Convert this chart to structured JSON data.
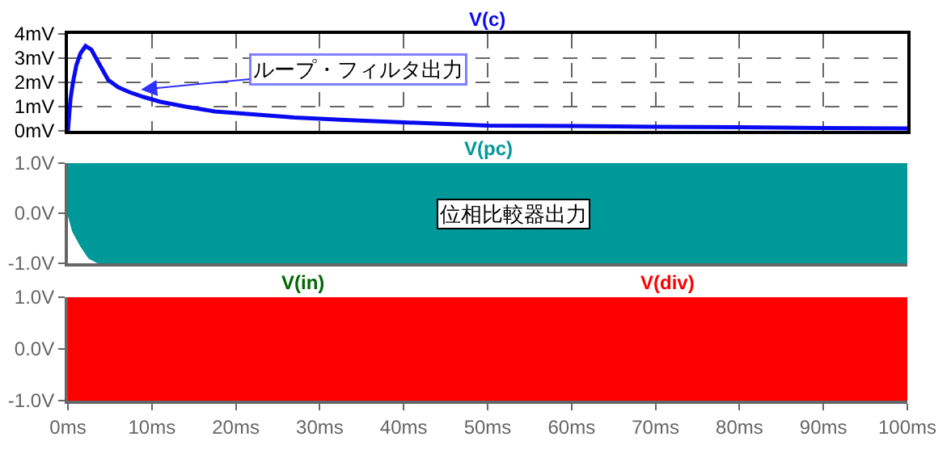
{
  "chart_data": [
    {
      "type": "line",
      "grid": true,
      "tick_labels": "y",
      "xlim": [
        0,
        100
      ],
      "xticks": [
        0,
        10,
        20,
        30,
        40,
        50,
        60,
        70,
        80,
        90,
        100
      ],
      "ylim": [
        0,
        4
      ],
      "yticks": [
        {
          "value": 0,
          "label": "0mV"
        },
        {
          "value": 1,
          "label": "1mV"
        },
        {
          "value": 2,
          "label": "2mV"
        },
        {
          "value": 3,
          "label": "3mV"
        },
        {
          "value": 4,
          "label": "4mV"
        }
      ],
      "series": [
        {
          "name": "V(c)",
          "color": "#0a0af0",
          "x": [
            0,
            0.3,
            0.6,
            1.0,
            1.5,
            2.1,
            2.8,
            3.5,
            4.8,
            6,
            7.3,
            9,
            11,
            14,
            17.5,
            22,
            27,
            33,
            40,
            50,
            60,
            70,
            80,
            90,
            100
          ],
          "values": [
            0,
            1.3,
            2.0,
            2.7,
            3.2,
            3.5,
            3.35,
            2.9,
            2.1,
            1.8,
            1.6,
            1.4,
            1.2,
            1.0,
            0.8,
            0.68,
            0.55,
            0.45,
            0.35,
            0.22,
            0.2,
            0.17,
            0.15,
            0.12,
            0.1
          ]
        }
      ],
      "annotations": [
        {
          "text": "ループ・フィルタ出力",
          "x": 8.7,
          "y": 1.7
        }
      ]
    },
    {
      "type": "area",
      "tick_labels": "y",
      "xlim": [
        0,
        100
      ],
      "ylim": [
        -1,
        1
      ],
      "yticks": [
        {
          "value": -1,
          "label": "-1.0V"
        },
        {
          "value": 0,
          "label": "0.0V"
        },
        {
          "value": 1,
          "label": "1.0V"
        }
      ],
      "series": [
        {
          "name": "V(pc)",
          "color": "#009999",
          "x": [
            0,
            0.6,
            1.5,
            2.5,
            3.5,
            5,
            100
          ],
          "values": [
            1,
            1,
            1,
            1,
            1,
            1,
            1
          ]
        },
        {
          "color": "#009999",
          "x": [
            0,
            0.6,
            1.5,
            2.5,
            3.5,
            5,
            100
          ],
          "values": [
            0,
            -0.36,
            -0.64,
            -0.89,
            -0.98,
            -1,
            -1
          ]
        }
      ],
      "annotations": [
        "位相比較器出力"
      ]
    },
    {
      "type": "area",
      "x": [
        0,
        100
      ],
      "xlim": [
        0,
        100
      ],
      "xticks": [
        {
          "value": 0,
          "label": "0ms"
        },
        {
          "value": 10,
          "label": "10ms"
        },
        {
          "value": 20,
          "label": "20ms"
        },
        {
          "value": 30,
          "label": "30ms"
        },
        {
          "value": 40,
          "label": "40ms"
        },
        {
          "value": 50,
          "label": "50ms"
        },
        {
          "value": 60,
          "label": "60ms"
        },
        {
          "value": 70,
          "label": "70ms"
        },
        {
          "value": 80,
          "label": "80ms"
        },
        {
          "value": 90,
          "label": "90ms"
        },
        {
          "value": 100,
          "label": "100ms"
        }
      ],
      "ylim": [
        -1,
        1
      ],
      "yticks": [
        {
          "value": -1,
          "label": "-1.0V"
        },
        {
          "value": 0,
          "label": "0.0V"
        },
        {
          "value": 1,
          "label": "1.0V"
        }
      ],
      "series": [
        {
          "name": "V(in)",
          "color": "#006600",
          "values": [
            null,
            null
          ]
        },
        {
          "name": "V(div)",
          "color": "#ff0000",
          "values": [
            1,
            1
          ]
        },
        {
          "color": "#ff0000",
          "values": [
            -1,
            -1
          ]
        }
      ]
    }
  ]
}
